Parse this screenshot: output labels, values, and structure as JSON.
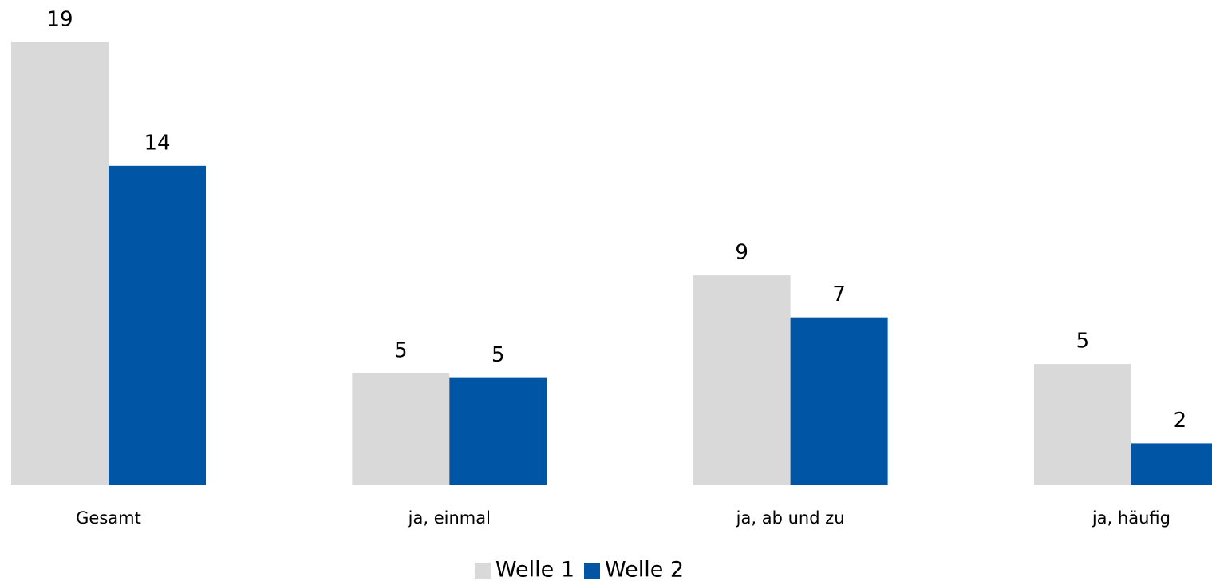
{
  "chart_data": {
    "type": "bar",
    "categories": [
      "Gesamt",
      "ja, einmal",
      "ja, ab und zu",
      "ja, häufig"
    ],
    "series": [
      {
        "name": "Welle 1",
        "color": "#d9d9d9",
        "values": [
          19.0,
          4.8,
          9.0,
          5.2
        ],
        "value_labels": [
          "19",
          "5",
          "9",
          "5"
        ]
      },
      {
        "name": "Welle 2",
        "color": "#0055a5",
        "values": [
          13.7,
          4.6,
          7.2,
          1.8
        ],
        "value_labels": [
          "14",
          "5",
          "7",
          "2"
        ]
      }
    ],
    "ylim": [
      0,
      19
    ],
    "legend": "bottom"
  }
}
